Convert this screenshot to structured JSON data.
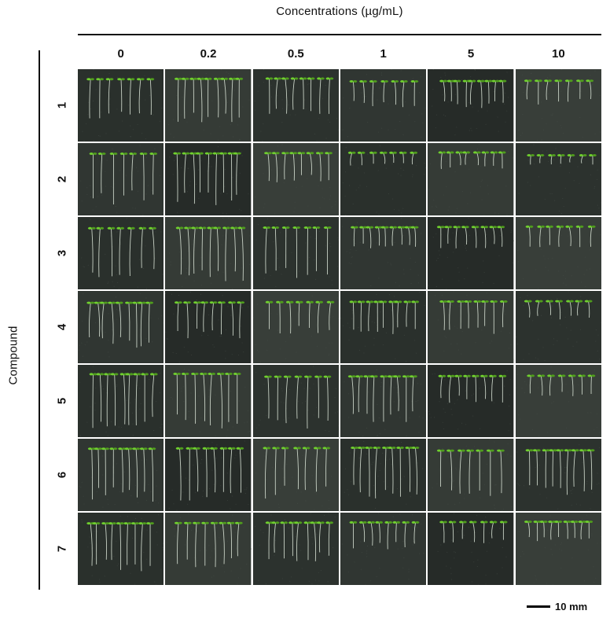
{
  "figure": {
    "top_title": "Concentrations (µg/mL)",
    "side_title": "Compound",
    "columns": [
      "0",
      "0.2",
      "0.5",
      "1",
      "5",
      "10"
    ],
    "rows": [
      "1",
      "2",
      "3",
      "4",
      "5",
      "6",
      "7"
    ],
    "scale_bar_label": "10 mm"
  },
  "colors": {
    "leaf": "#6fcf2e",
    "leaf_dark": "#4f9c1d",
    "stem": "#d9e3d6",
    "background_a": "#2a302c",
    "background_b": "#353b36"
  }
}
